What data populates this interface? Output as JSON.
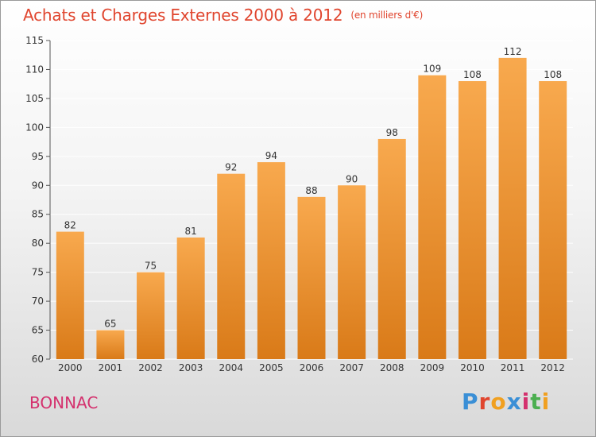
{
  "header": {
    "title": "Achats et Charges Externes 2000 à 2012",
    "unit": "(en milliers d'€)"
  },
  "footer": {
    "place": "BONNAC",
    "brand": "Proxiti",
    "brand_colors": [
      "#3a8fd6",
      "#e0452e",
      "#f0a020",
      "#3a8fd6",
      "#d4316e",
      "#4caf50",
      "#f0a020"
    ]
  },
  "colors": {
    "bar_top": "#f8a94e",
    "bar_bottom": "#d97a18",
    "grid": "#ffffff",
    "axis_text": "#333333"
  },
  "chart_data": {
    "type": "bar",
    "categories": [
      "2000",
      "2001",
      "2002",
      "2003",
      "2004",
      "2005",
      "2006",
      "2007",
      "2008",
      "2009",
      "2010",
      "2011",
      "2012"
    ],
    "values": [
      82,
      65,
      75,
      81,
      92,
      94,
      88,
      90,
      98,
      109,
      108,
      112,
      108
    ],
    "title": "Achats et Charges Externes 2000 à 2012",
    "ylim": [
      60,
      115
    ],
    "yticks": [
      60,
      65,
      70,
      75,
      80,
      85,
      90,
      95,
      100,
      105,
      110,
      115
    ],
    "grid": true,
    "data_labels": true
  }
}
